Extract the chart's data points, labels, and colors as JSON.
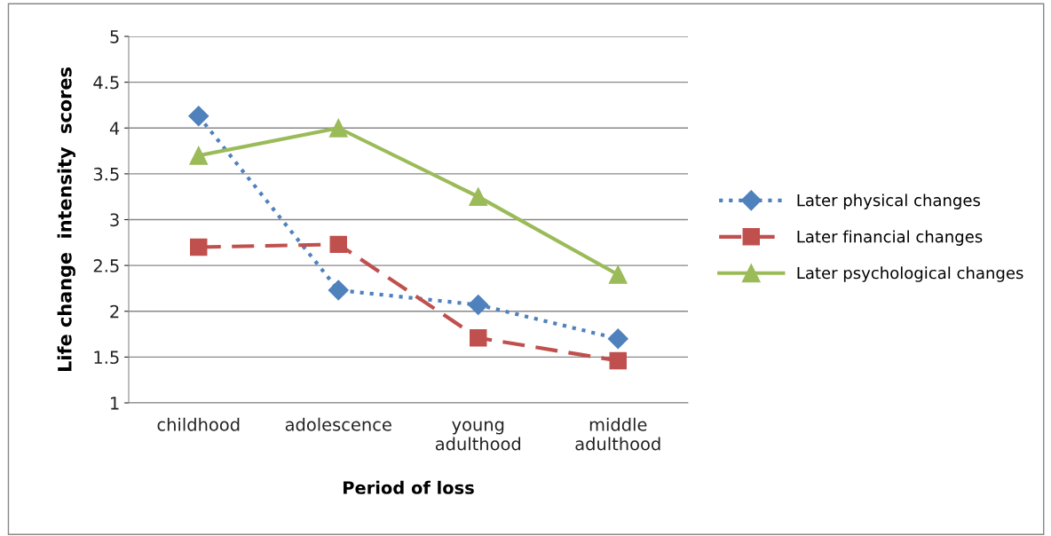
{
  "chart_data": {
    "type": "line",
    "xlabel": "Period of loss",
    "ylabel": "Life change  intensity  scores",
    "categories": [
      "childhood",
      "adolescence",
      "young\nadulthood",
      "middle\nadulthood"
    ],
    "series": [
      {
        "name": "Later physical changes",
        "color": "#4f81bd",
        "marker": "diamond",
        "line_style": "dotted",
        "values": [
          4.13,
          2.23,
          2.07,
          1.7
        ]
      },
      {
        "name": "Later financial changes",
        "color": "#c0504d",
        "marker": "square",
        "line_style": "dashed",
        "values": [
          2.7,
          2.73,
          1.71,
          1.46
        ]
      },
      {
        "name": "Later psychological changes",
        "color": "#9bbb59",
        "marker": "triangle",
        "line_style": "solid",
        "values": [
          3.7,
          4.0,
          3.25,
          2.4
        ]
      }
    ],
    "ylim": [
      1,
      5
    ],
    "yticks": [
      1,
      1.5,
      2,
      2.5,
      3,
      3.5,
      4,
      4.5,
      5
    ],
    "grid": "y",
    "legend": "right"
  }
}
